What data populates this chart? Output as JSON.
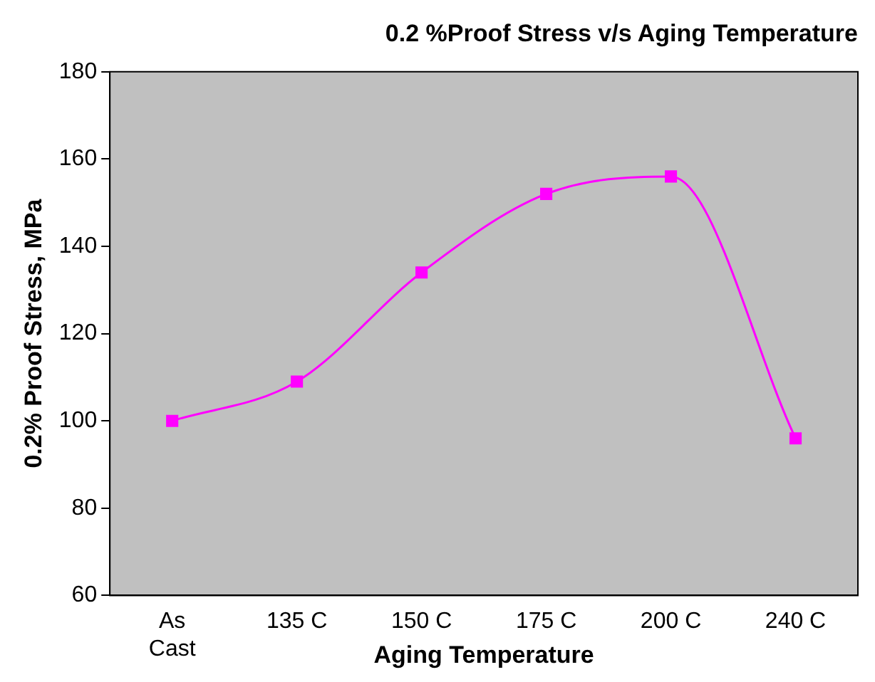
{
  "chart_data": {
    "type": "line",
    "title": "0.2 %Proof Stress v/s Aging Temperature",
    "xlabel": "Aging Temperature",
    "ylabel": "0.2% Proof Stress, MPa",
    "categories": [
      "As\nCast",
      "135 C",
      "150 C",
      "175 C",
      "200 C",
      "240 C"
    ],
    "series": [
      {
        "color": "#ff00ff",
        "values": [
          100,
          109,
          134,
          152,
          156,
          96
        ]
      }
    ],
    "ylim": [
      60,
      180
    ],
    "yticks": [
      60,
      80,
      100,
      120,
      140,
      160,
      180
    ],
    "grid": false,
    "legend": false,
    "marker": "square",
    "line_style": "solid"
  }
}
